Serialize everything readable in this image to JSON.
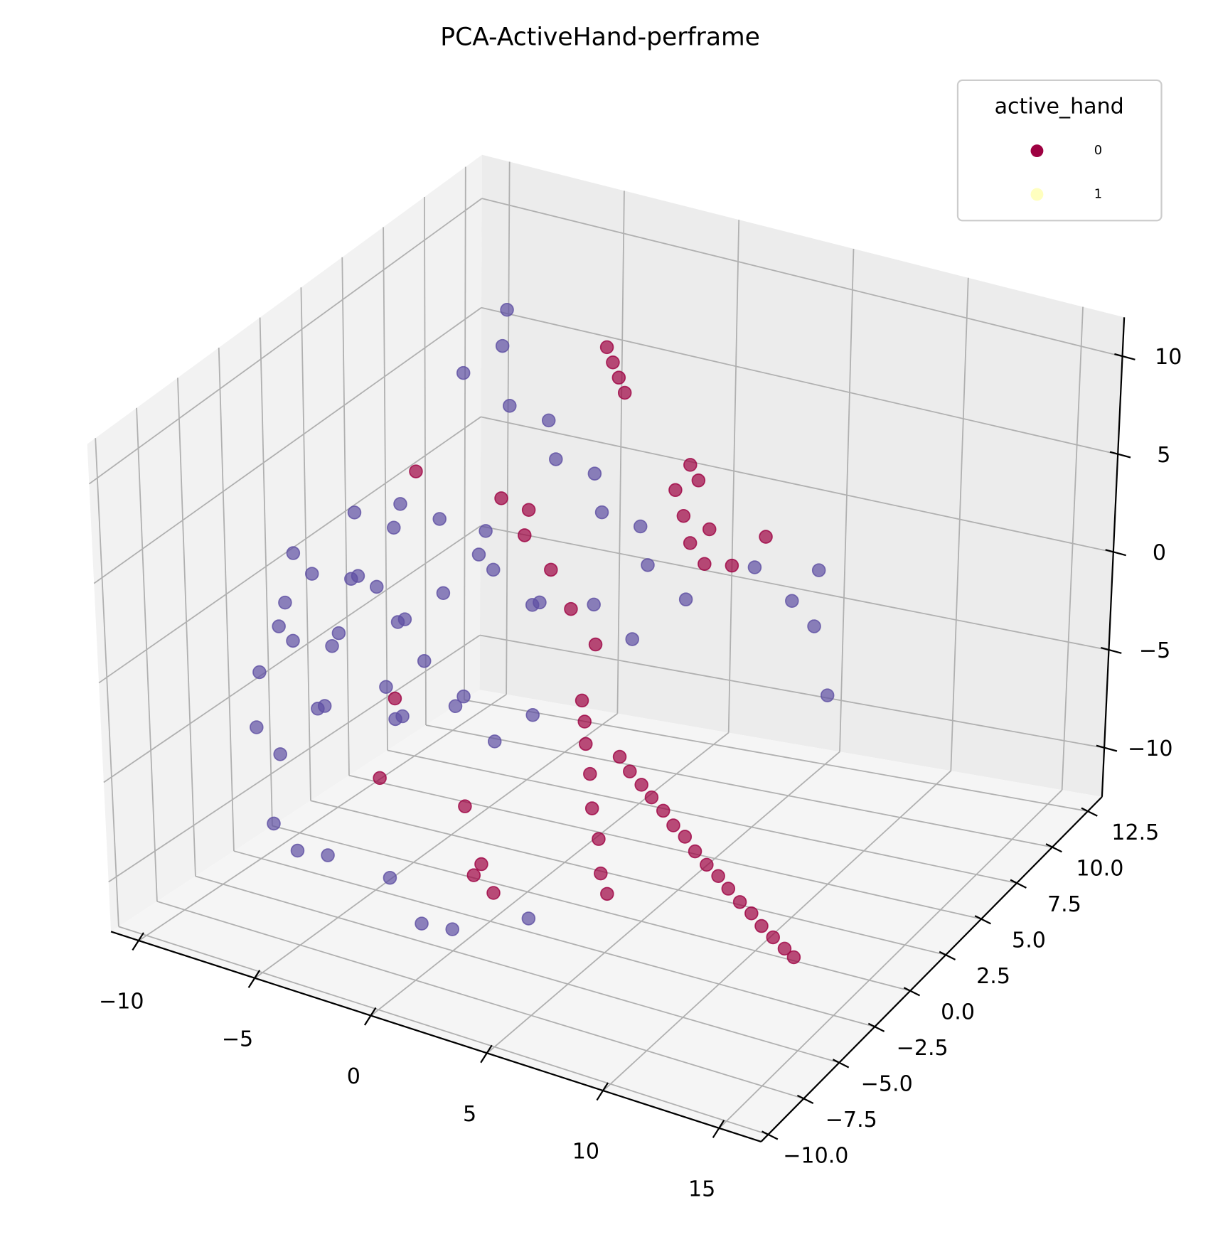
{
  "chart_data": {
    "type": "scatter3d",
    "title": "PCA-ActiveHand-perframe",
    "legend_title": "active_hand",
    "legend_position": "upper right",
    "grid": true,
    "xlim": [
      -11.2,
      16.8
    ],
    "ylim": [
      -10.5,
      13.5
    ],
    "zlim": [
      -12.5,
      12
    ],
    "xticks": [
      {
        "value": -10,
        "label": "−10"
      },
      {
        "value": -5,
        "label": "−5"
      },
      0,
      5,
      10,
      15
    ],
    "yticks": [
      {
        "value": -10,
        "label": "−10.0"
      },
      {
        "value": -7.5,
        "label": "−7.5"
      },
      {
        "value": -5,
        "label": "−5.0"
      },
      {
        "value": -2.5,
        "label": "−2.5"
      },
      {
        "value": 0,
        "label": "0.0"
      },
      2.5,
      {
        "value": 5,
        "label": "5.0"
      },
      7.5,
      {
        "value": 10,
        "label": "10.0"
      },
      12.5
    ],
    "zticks": [
      {
        "value": -10,
        "label": "−10"
      },
      {
        "value": -5,
        "label": "−5"
      },
      0,
      5,
      10
    ],
    "series": [
      {
        "name": "0",
        "color": "#9e0142",
        "marker_color": "#9e0142",
        "x": [
          5.5,
          6,
          6.5,
          7,
          7.5,
          8,
          8.5,
          9,
          9.5,
          10,
          10.5,
          11,
          11.5,
          12,
          12.5,
          13,
          13.4,
          4.5,
          4.6,
          4.7,
          4.8,
          5,
          5.2,
          5.4,
          5.6,
          -2,
          -1.6,
          -1.2,
          -0.8,
          1.5,
          2,
          2.5,
          3,
          1.8,
          2.3,
          3,
          4,
          4.8,
          -3,
          -2,
          -1,
          0,
          1,
          -2.5,
          -6,
          -5,
          0,
          2,
          -3,
          3,
          3.5
        ],
        "y": [
          -2.1,
          -2.2,
          -2.2,
          -2.3,
          -2.3,
          -2.4,
          -2.4,
          -2.5,
          -2.5,
          -2.5,
          -2.6,
          -2.6,
          -2.6,
          -2.7,
          -2.7,
          -2.7,
          -2.7,
          -3,
          -3,
          -3.1,
          -3,
          -3.2,
          -3.1,
          -3.3,
          -3.2,
          8.2,
          8,
          7.8,
          7.6,
          7.5,
          7.3,
          7,
          7.2,
          8,
          7.8,
          7.5,
          7.5,
          8.5,
          3,
          3,
          3.2,
          3,
          3.1,
          4,
          2,
          -1,
          -4,
          -6,
          -5,
          -8,
          -7.5
        ],
        "z": [
          -3,
          -3.5,
          -4,
          -4.4,
          -4.9,
          -5.4,
          -5.8,
          -6.3,
          -6.8,
          -7.2,
          -7.6,
          -8.1,
          -8.5,
          -8.9,
          -9.3,
          -9.7,
          -10,
          0,
          -1,
          -2,
          -3.5,
          -5,
          -6.5,
          -8,
          -9,
          8.5,
          8,
          7.5,
          7,
          3,
          2,
          1,
          0,
          4,
          3.5,
          1.5,
          0,
          1,
          4,
          2.5,
          1,
          -0.5,
          -2,
          3,
          5,
          -4,
          -6,
          -7,
          -5,
          -6,
          -7
        ]
      },
      {
        "name": "1",
        "color": "#ffffbf",
        "marker_color": "#5e4fa2",
        "x": [
          -9,
          -8.5,
          -8,
          -7.5,
          -7,
          -6.5,
          -6,
          -5.5,
          -5,
          -4.5,
          -4,
          -3.5,
          -3,
          -9.5,
          -9,
          -8,
          -7,
          -6,
          -5,
          -4,
          -8,
          -7,
          -6,
          -5,
          -4,
          -3,
          -2,
          -1,
          0,
          -2,
          -1,
          0,
          1,
          -6,
          -5,
          -4,
          -3,
          -2,
          -5.5,
          -1,
          0,
          1,
          2,
          3,
          2,
          1,
          4,
          5,
          6,
          5.5,
          -7,
          -6,
          -4,
          -2,
          0,
          2,
          4,
          -10,
          -10,
          6
        ],
        "y": [
          -2,
          -1,
          -3,
          0,
          -2,
          -1,
          -3,
          0,
          -2,
          -1,
          -3,
          0,
          -2,
          -3,
          -4,
          -4,
          -3,
          -4,
          -1,
          -2,
          1,
          2,
          1,
          2,
          3,
          2,
          1,
          2,
          1,
          -1,
          -3,
          -2,
          -1,
          5,
          6,
          5,
          6,
          5,
          7,
          6,
          5,
          6,
          5,
          6,
          4,
          3,
          9,
          10,
          10,
          11,
          -6,
          -6,
          -7,
          -6,
          -7,
          -8,
          -6,
          -1,
          0,
          11
        ],
        "z": [
          0,
          1,
          -1,
          0.5,
          -1.5,
          1.5,
          0,
          -1,
          2,
          0,
          -2,
          1,
          -1,
          -3,
          -5,
          -6,
          -4,
          -3,
          -5,
          -4,
          3,
          2,
          4,
          3,
          1,
          3,
          2,
          0,
          1,
          -3,
          -2,
          -4,
          -3,
          8,
          9,
          7,
          6,
          5,
          10,
          4,
          3,
          2,
          1,
          -1,
          -2,
          0,
          -1,
          -3,
          -4,
          -2,
          -8,
          -9,
          -8,
          -9,
          -10,
          -9,
          -9,
          -2,
          1,
          -8
        ]
      }
    ]
  }
}
